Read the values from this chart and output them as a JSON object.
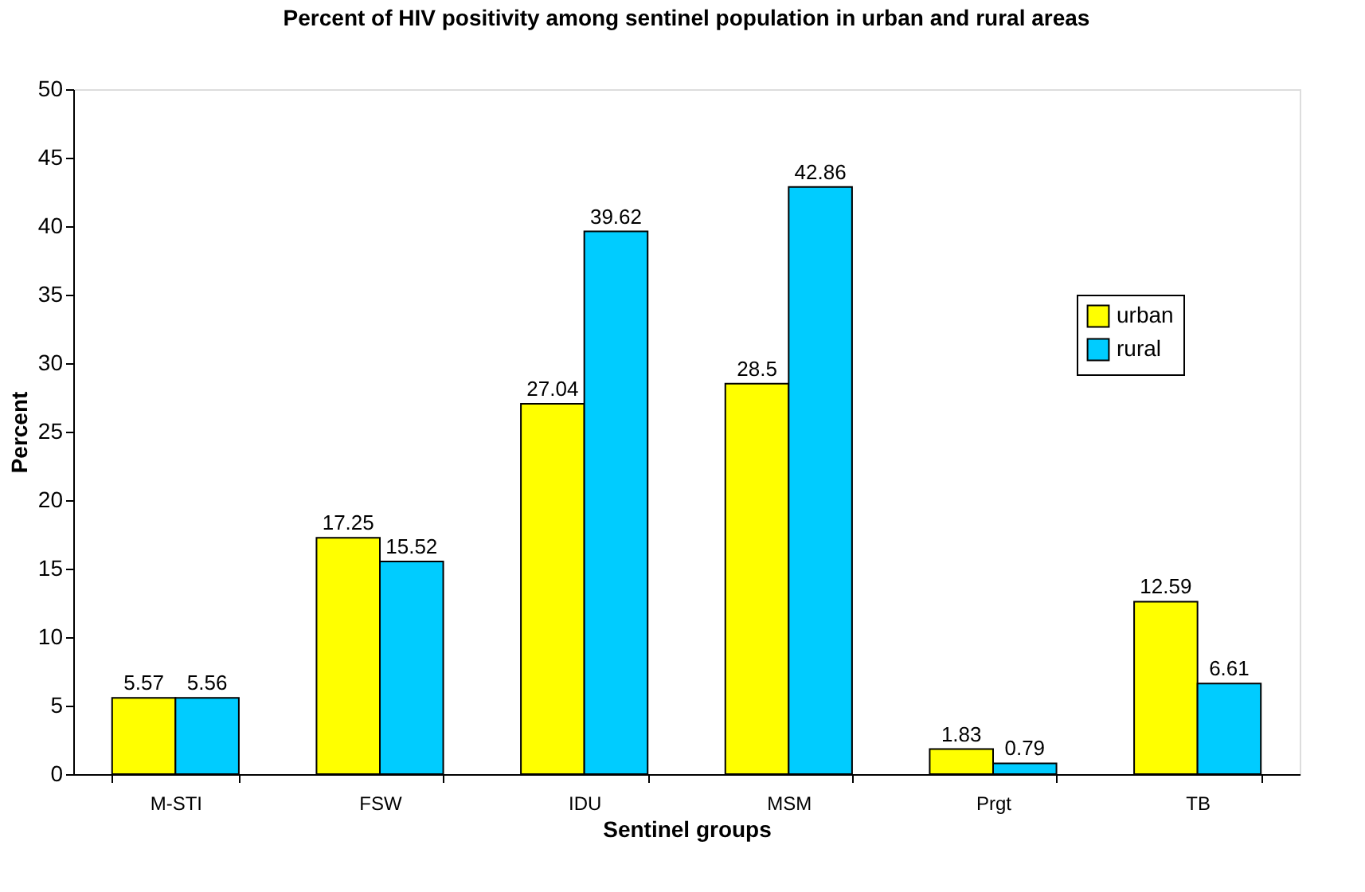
{
  "chart_data": {
    "type": "bar",
    "title": "Percent of HIV positivity among sentinel population in urban and rural areas",
    "xlabel": "Sentinel groups",
    "ylabel": "Percent",
    "categories": [
      "M-STI",
      "FSW",
      "IDU",
      "MSM",
      "Prgt",
      "TB"
    ],
    "series": [
      {
        "name": "urban",
        "color": "#ffff00",
        "values": [
          5.57,
          17.25,
          27.04,
          28.5,
          1.83,
          12.59
        ]
      },
      {
        "name": "rural",
        "color": "#00ccff",
        "values": [
          5.56,
          15.52,
          39.62,
          42.86,
          0.79,
          6.61
        ]
      }
    ],
    "ylim": [
      0,
      50
    ],
    "yticks": [
      0,
      5,
      10,
      15,
      20,
      25,
      30,
      35,
      40,
      45,
      50
    ],
    "grid": false,
    "legend": "right",
    "data_labels": true
  }
}
